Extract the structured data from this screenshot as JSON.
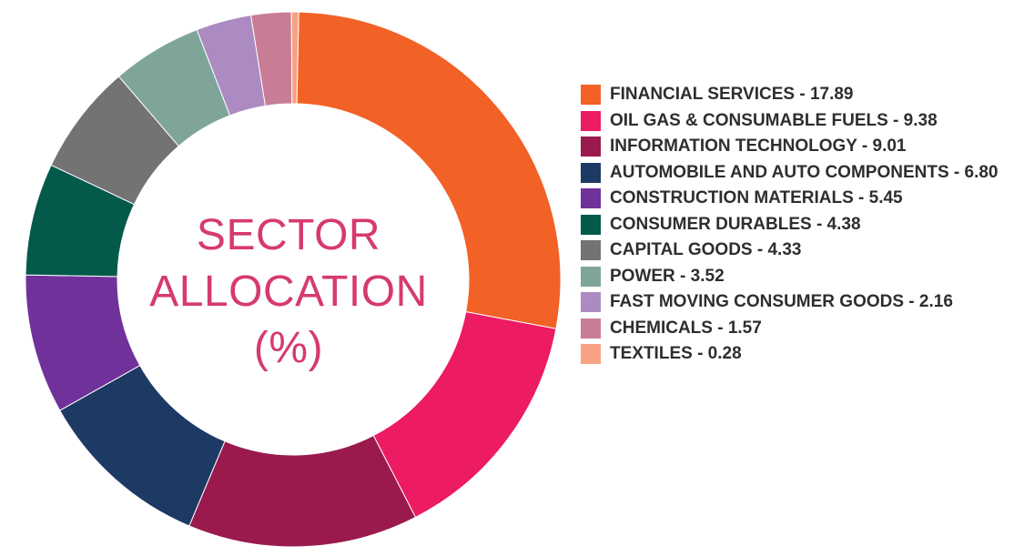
{
  "chart_data": {
    "type": "pie",
    "title": "SECTOR ALLOCATION (%)",
    "title_lines": [
      "SECTOR",
      "ALLOCATION",
      "(%)"
    ],
    "categories": [
      "FINANCIAL SERVICES",
      "OIL GAS & CONSUMABLE FUELS",
      "INFORMATION TECHNOLOGY",
      "AUTOMOBILE AND AUTO COMPONENTS",
      "CONSTRUCTION MATERIALS",
      "CONSUMER DURABLES",
      "CAPITAL GOODS",
      "POWER",
      "FAST MOVING CONSUMER GOODS",
      "CHEMICALS",
      "TEXTILES"
    ],
    "values": [
      17.89,
      9.38,
      9.01,
      6.8,
      5.45,
      4.38,
      4.33,
      3.52,
      2.16,
      1.57,
      0.28
    ],
    "value_labels": [
      "17.89",
      "9.38",
      "9.01",
      "6.80",
      "5.45",
      "4.38",
      "4.33",
      "3.52",
      "2.16",
      "1.57",
      "0.28"
    ],
    "legend_labels": [
      "FINANCIAL SERVICES - 17.89",
      "OIL GAS & CONSUMABLE FUELS - 9.38",
      "INFORMATION TECHNOLOGY - 9.01",
      "AUTOMOBILE AND AUTO COMPONENTS - 6.80",
      "CONSTRUCTION MATERIALS - 5.45",
      "CONSUMER DURABLES - 4.38",
      "CAPITAL GOODS - 4.33",
      "POWER - 3.52",
      "FAST MOVING CONSUMER GOODS - 2.16",
      "CHEMICALS - 1.57",
      "TEXTILES - 0.28"
    ],
    "colors": [
      "#f26126",
      "#ec1b63",
      "#9a1a4e",
      "#1d3a64",
      "#70319a",
      "#035a4a",
      "#737373",
      "#7fa59a",
      "#ab8bc2",
      "#c97c95",
      "#f7a283"
    ],
    "legend_position": "right",
    "donut": true
  }
}
